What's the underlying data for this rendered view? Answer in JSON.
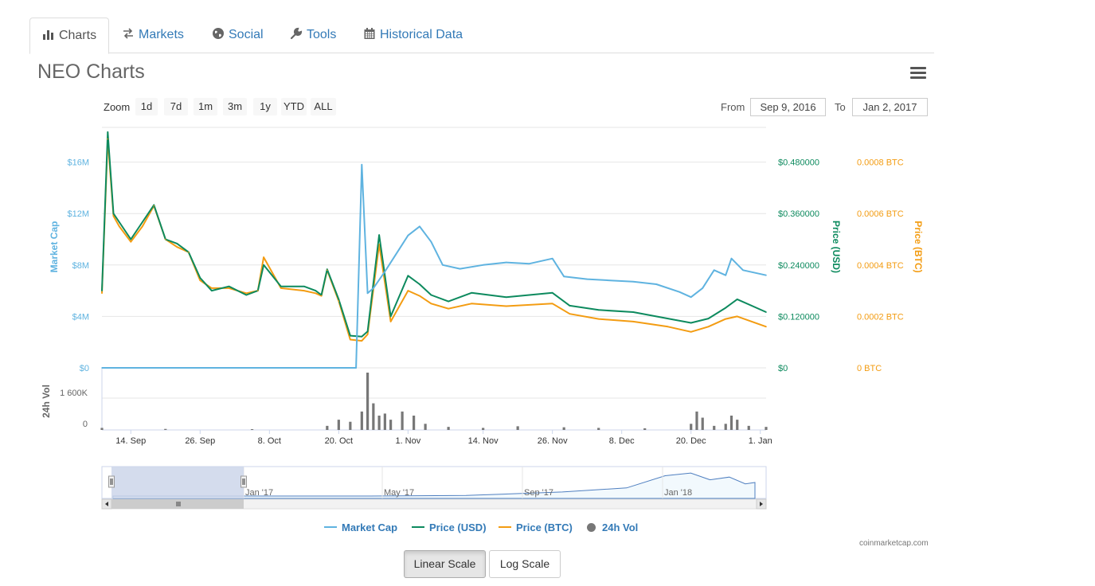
{
  "tabs": [
    {
      "label": "Charts",
      "icon": "bar-chart-icon",
      "active": true
    },
    {
      "label": "Markets",
      "icon": "exchange-arrows-icon",
      "active": false
    },
    {
      "label": "Social",
      "icon": "globe-icon",
      "active": false
    },
    {
      "label": "Tools",
      "icon": "wrench-icon",
      "active": false
    },
    {
      "label": "Historical Data",
      "icon": "calendar-icon",
      "active": false
    }
  ],
  "page_title": "NEO Charts",
  "menu_icon": "hamburger-menu-icon",
  "zoom": {
    "label": "Zoom",
    "buttons": [
      "1d",
      "7d",
      "1m",
      "3m",
      "1y",
      "YTD",
      "ALL"
    ]
  },
  "range": {
    "from_label": "From",
    "from_value": "Sep 9, 2016",
    "to_label": "To",
    "to_value": "Jan 2, 2017"
  },
  "legend": {
    "market_cap": "Market Cap",
    "price_usd": "Price (USD)",
    "price_btc": "Price (BTC)",
    "vol": "24h Vol"
  },
  "credit": "coinmarketcap.com",
  "scale_buttons": {
    "linear": "Linear Scale",
    "log": "Log Scale",
    "active": "linear"
  },
  "colors": {
    "market_cap": "#5fb3e0",
    "price_usd": "#0d8a5e",
    "price_btc": "#f39c12",
    "volume": "#777777",
    "navigator_mask": "#cdd6ea",
    "tab_link": "#337ab7"
  },
  "chart_data": {
    "type": "line",
    "x_type": "datetime",
    "x_ticks": [
      "14. Sep",
      "26. Sep",
      "8. Oct",
      "20. Oct",
      "1. Nov",
      "14. Nov",
      "26. Nov",
      "8. Dec",
      "20. Dec",
      "1. Jan"
    ],
    "x_range": [
      "2016-09-09",
      "2017-01-02"
    ],
    "axes": {
      "market_cap": {
        "label": "Market Cap",
        "ticks": [
          "$0",
          "$4M",
          "$8M",
          "$12M",
          "$16M"
        ],
        "range": [
          0,
          18700000
        ]
      },
      "price_usd": {
        "label": "Price (USD)",
        "ticks": [
          "$0",
          "$0.120000",
          "$0.240000",
          "$0.360000",
          "$0.480000"
        ],
        "range": [
          0,
          0.561
        ]
      },
      "price_btc": {
        "label": "Price (BTC)",
        "ticks": [
          "0 BTC",
          "0.0002 BTC",
          "0.0004 BTC",
          "0.0006 BTC",
          "0.0008 BTC"
        ],
        "range": [
          0,
          0.000935
        ]
      },
      "volume": {
        "label": "24h Vol",
        "ticks": [
          "0",
          "1 600K"
        ],
        "range": [
          0,
          2800000
        ]
      }
    },
    "grid": true,
    "series": [
      {
        "name": "Market Cap",
        "x": [
          "2016-09-09",
          "2016-09-10",
          "2016-10-23",
          "2016-10-24",
          "2016-10-25",
          "2016-10-26",
          "2016-10-28",
          "2016-11-01",
          "2016-11-03",
          "2016-11-05",
          "2016-11-07",
          "2016-11-10",
          "2016-11-14",
          "2016-11-18",
          "2016-11-22",
          "2016-11-26",
          "2016-11-28",
          "2016-12-02",
          "2016-12-06",
          "2016-12-10",
          "2016-12-14",
          "2016-12-18",
          "2016-12-20",
          "2016-12-22",
          "2016-12-24",
          "2016-12-26",
          "2016-12-27",
          "2016-12-29",
          "2017-01-02"
        ],
        "y": [
          0,
          0,
          0,
          15800000,
          5800000,
          6200000,
          7500000,
          10300000,
          11000000,
          9800000,
          8000000,
          7700000,
          8000000,
          8200000,
          8100000,
          8500000,
          7100000,
          6900000,
          6800000,
          6700000,
          6500000,
          5900000,
          5500000,
          6200000,
          7600000,
          7200000,
          8500000,
          7600000,
          7200000
        ]
      },
      {
        "name": "Price (USD)",
        "x": [
          "2016-09-09",
          "2016-09-10",
          "2016-09-11",
          "2016-09-12",
          "2016-09-14",
          "2016-09-16",
          "2016-09-18",
          "2016-09-20",
          "2016-09-22",
          "2016-09-24",
          "2016-09-26",
          "2016-09-28",
          "2016-10-01",
          "2016-10-04",
          "2016-10-06",
          "2016-10-07",
          "2016-10-10",
          "2016-10-14",
          "2016-10-16",
          "2016-10-17",
          "2016-10-18",
          "2016-10-20",
          "2016-10-22",
          "2016-10-24",
          "2016-10-25",
          "2016-10-27",
          "2016-10-29",
          "2016-11-01",
          "2016-11-03",
          "2016-11-05",
          "2016-11-08",
          "2016-11-12",
          "2016-11-18",
          "2016-11-26",
          "2016-11-29",
          "2016-12-04",
          "2016-12-10",
          "2016-12-16",
          "2016-12-20",
          "2016-12-23",
          "2016-12-26",
          "2016-12-28",
          "2017-01-02"
        ],
        "y": [
          0.18,
          0.55,
          0.36,
          0.34,
          0.3,
          0.34,
          0.38,
          0.3,
          0.29,
          0.27,
          0.21,
          0.18,
          0.19,
          0.17,
          0.18,
          0.24,
          0.19,
          0.19,
          0.18,
          0.17,
          0.23,
          0.16,
          0.075,
          0.073,
          0.085,
          0.31,
          0.12,
          0.215,
          0.195,
          0.17,
          0.155,
          0.175,
          0.165,
          0.175,
          0.145,
          0.135,
          0.13,
          0.115,
          0.105,
          0.115,
          0.14,
          0.16,
          0.13
        ]
      },
      {
        "name": "Price (BTC)",
        "x": [
          "2016-09-09",
          "2016-09-10",
          "2016-09-11",
          "2016-09-12",
          "2016-09-14",
          "2016-09-16",
          "2016-09-18",
          "2016-09-20",
          "2016-09-22",
          "2016-09-24",
          "2016-09-26",
          "2016-09-28",
          "2016-10-01",
          "2016-10-04",
          "2016-10-06",
          "2016-10-07",
          "2016-10-10",
          "2016-10-14",
          "2016-10-16",
          "2016-10-17",
          "2016-10-18",
          "2016-10-20",
          "2016-10-22",
          "2016-10-24",
          "2016-10-25",
          "2016-10-27",
          "2016-10-29",
          "2016-11-01",
          "2016-11-03",
          "2016-11-05",
          "2016-11-08",
          "2016-11-12",
          "2016-11-18",
          "2016-11-26",
          "2016-11-29",
          "2016-12-04",
          "2016-12-10",
          "2016-12-16",
          "2016-12-20",
          "2016-12-23",
          "2016-12-26",
          "2016-12-28",
          "2017-01-02"
        ],
        "y": [
          0.00029,
          0.00089,
          0.00059,
          0.00055,
          0.00049,
          0.00055,
          0.00063,
          0.0005,
          0.00047,
          0.00045,
          0.00034,
          0.00031,
          0.00031,
          0.00029,
          0.0003,
          0.00043,
          0.00031,
          0.0003,
          0.00029,
          0.00028,
          0.00038,
          0.00026,
          0.00011,
          0.000105,
          0.00013,
          0.00048,
          0.00018,
          0.0003,
          0.00028,
          0.00025,
          0.00023,
          0.00025,
          0.00024,
          0.00025,
          0.00021,
          0.00019,
          0.00018,
          0.00016,
          0.00014,
          0.00016,
          0.00019,
          0.0002,
          0.00016
        ]
      },
      {
        "name": "24h Vol",
        "x": [
          "2016-09-09",
          "2016-09-20",
          "2016-10-05",
          "2016-10-18",
          "2016-10-20",
          "2016-10-22",
          "2016-10-24",
          "2016-10-25",
          "2016-10-26",
          "2016-10-27",
          "2016-10-28",
          "2016-10-29",
          "2016-10-31",
          "2016-11-02",
          "2016-11-04",
          "2016-11-08",
          "2016-11-14",
          "2016-11-20",
          "2016-11-28",
          "2016-12-04",
          "2016-12-12",
          "2016-12-20",
          "2016-12-21",
          "2016-12-22",
          "2016-12-24",
          "2016-12-26",
          "2016-12-27",
          "2016-12-28",
          "2016-12-30",
          "2017-01-02"
        ],
        "y": [
          100000,
          50000,
          40000,
          200000,
          500000,
          400000,
          900000,
          2800000,
          1300000,
          700000,
          800000,
          500000,
          900000,
          700000,
          300000,
          150000,
          100000,
          180000,
          130000,
          100000,
          80000,
          300000,
          900000,
          600000,
          200000,
          300000,
          700000,
          500000,
          200000,
          150000
        ]
      }
    ],
    "navigator": {
      "ticks": [
        "Jan '17",
        "May '17",
        "Sep '17",
        "Jan '18"
      ],
      "selected_range": [
        "2016-09-09",
        "2017-01-02"
      ]
    }
  }
}
